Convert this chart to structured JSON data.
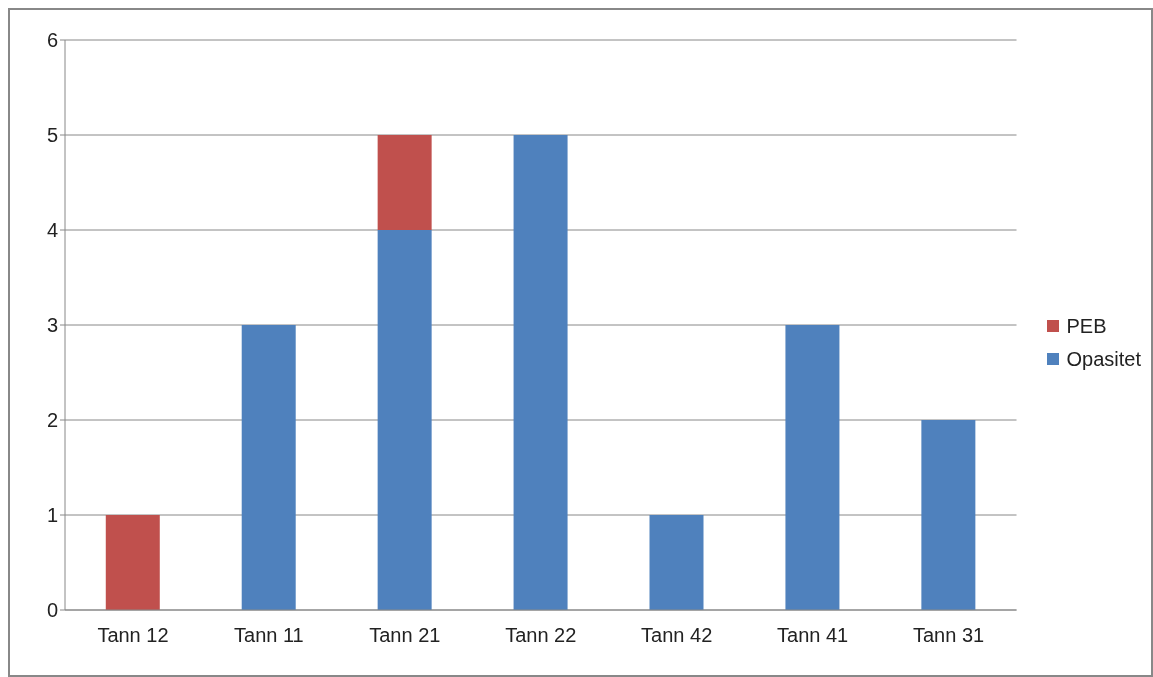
{
  "chart_data": {
    "type": "bar",
    "stacked": true,
    "categories": [
      "Tann 12",
      "Tann 11",
      "Tann 21",
      "Tann 22",
      "Tann 42",
      "Tann 41",
      "Tann 31"
    ],
    "series": [
      {
        "name": "Opasitet",
        "color": "#4f81bd",
        "values": [
          0,
          3,
          4,
          5,
          1,
          3,
          2
        ]
      },
      {
        "name": "PEB",
        "color": "#c0504d",
        "values": [
          1,
          0,
          1,
          0,
          0,
          0,
          0
        ]
      }
    ],
    "ylim": [
      0,
      6
    ],
    "yticks": [
      0,
      1,
      2,
      3,
      4,
      5,
      6
    ],
    "grid": "y",
    "legend": "right"
  }
}
